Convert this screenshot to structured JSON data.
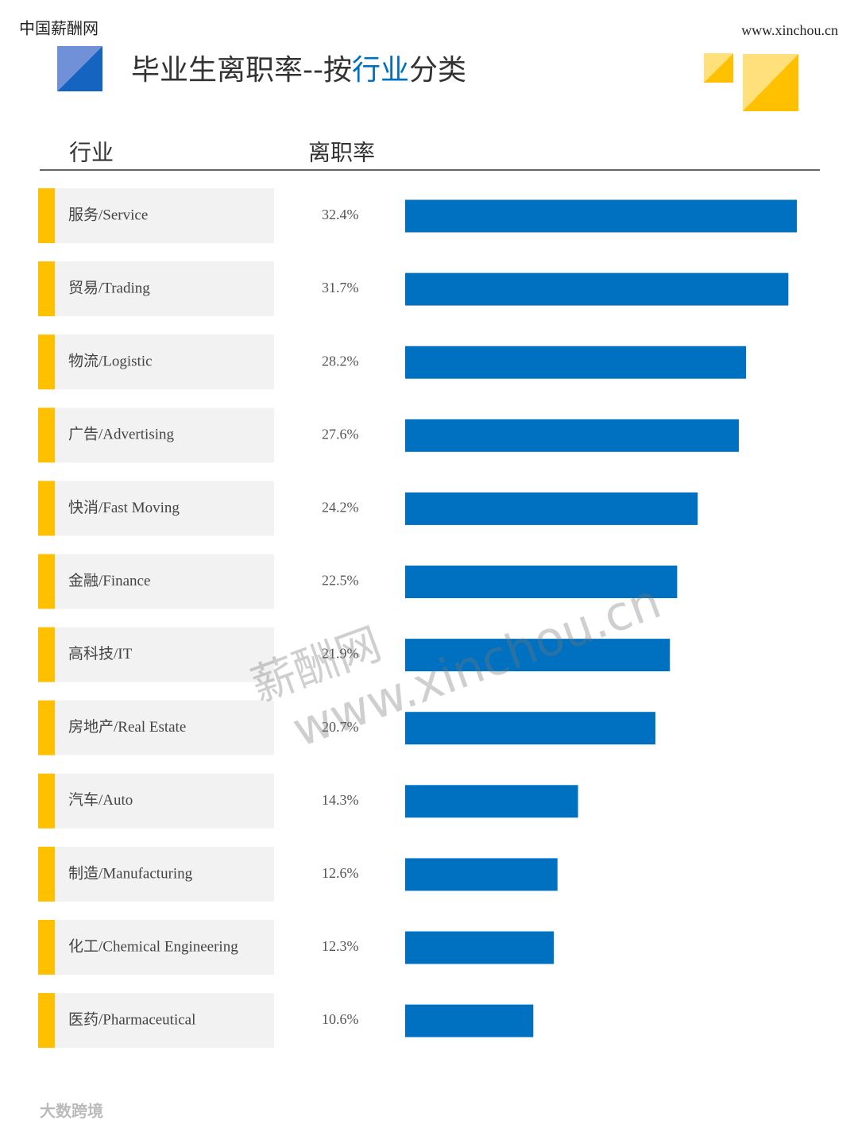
{
  "brand": "中国薪酬网",
  "website": "www.xinchou.cn",
  "chart_data": {
    "type": "bar",
    "orientation": "horizontal",
    "title_parts": [
      "毕业生离职率--按",
      "行业",
      "分类"
    ],
    "category_header": "行业",
    "value_header": "离职率",
    "categories": [
      "服务/Service",
      "贸易/Trading",
      "物流/Logistic",
      "广告/Advertising",
      "快消/Fast Moving",
      "金融/Finance",
      "高科技/IT",
      "房地产/Real Estate",
      "汽车/Auto",
      "制造/Manufacturing",
      "化工/Chemical Engineering",
      "医药/Pharmaceutical"
    ],
    "values": [
      32.4,
      31.7,
      28.2,
      27.6,
      24.2,
      22.5,
      21.9,
      20.7,
      14.3,
      12.6,
      12.3,
      10.6
    ],
    "value_labels": [
      "32.4%",
      "31.7%",
      "28.2%",
      "27.6%",
      "24.2%",
      "22.5%",
      "21.9%",
      "20.7%",
      "14.3%",
      "12.6%",
      "12.3%",
      "10.6%"
    ],
    "color": "#0070c0",
    "accent_color": "#ffc000"
  },
  "watermark": [
    "薪酬网",
    "www.xinchou.cn"
  ],
  "footer_logo": "大数跨境"
}
